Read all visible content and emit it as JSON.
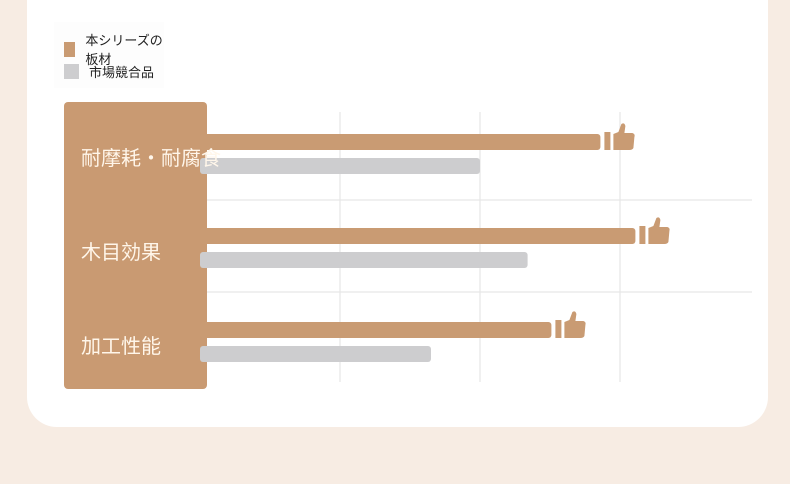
{
  "chart_data": {
    "type": "bar",
    "orientation": "horizontal",
    "categories": [
      "耐摩耗・耐腐食",
      "木目効果",
      "加工性能"
    ],
    "series": [
      {
        "name": "本シリーズの板材",
        "color": "#c99b73",
        "values": [
          2.86,
          3.11,
          2.51
        ]
      },
      {
        "name": "市場競合品",
        "color": "#cdcdcf",
        "values": [
          2.0,
          2.34,
          1.65
        ]
      }
    ],
    "xlim": [
      0,
      3.94
    ],
    "grid": true,
    "legend": "top-left",
    "winner_icon": "thumbs-up-icon"
  }
}
